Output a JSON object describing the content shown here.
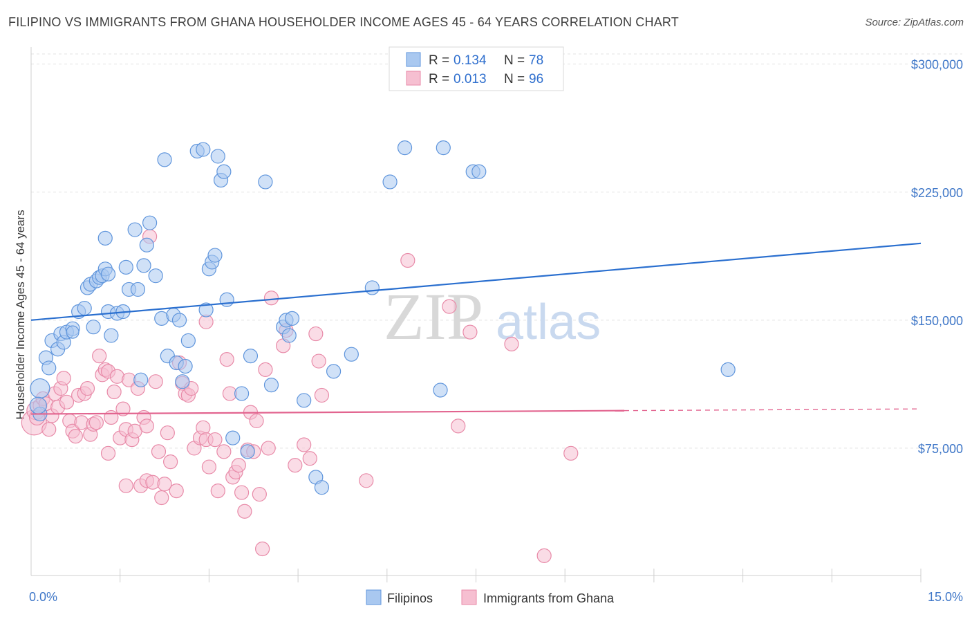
{
  "title": "FILIPINO VS IMMIGRANTS FROM GHANA HOUSEHOLDER INCOME AGES 45 - 64 YEARS CORRELATION CHART",
  "source": "Source: ZipAtlas.com",
  "watermark": {
    "zip": "ZIP",
    "atlas": "atlas"
  },
  "colors": {
    "blue_fill": "#a9c8f0",
    "blue_stroke": "#5f95dc",
    "blue_line": "#2a6fcf",
    "pink_fill": "#f6bfd1",
    "pink_stroke": "#e88aa8",
    "pink_line": "#e2648f",
    "grid": "#e3e3e3",
    "axis_text": "#3f77c8"
  },
  "chart_data": {
    "type": "scatter",
    "xlabel": "",
    "ylabel": "Householder Income Ages 45 - 64 years",
    "xlim": [
      0.0,
      15.0
    ],
    "ylim": [
      0,
      310000
    ],
    "x_tick_labels": {
      "left": "0.0%",
      "right": "15.0%"
    },
    "y_ticks": [
      {
        "value": 75000,
        "label": "$75,000"
      },
      {
        "value": 150000,
        "label": "$150,000"
      },
      {
        "value": 225000,
        "label": "$225,000"
      },
      {
        "value": 300000,
        "label": "$300,000"
      }
    ],
    "legend": [
      {
        "name": "Filipinos",
        "r_label": "R =",
        "r_value": "0.134",
        "n_label": "N =",
        "n_value": "78"
      },
      {
        "name": "Immigrants from Ghana",
        "r_label": "R =",
        "r_value": "0.013",
        "n_label": "N =",
        "n_value": "96"
      }
    ],
    "series": [
      {
        "name": "Filipinos",
        "trend": {
          "x": [
            0.0,
            15.0
          ],
          "y": [
            150000,
            195000
          ],
          "dashed_from": null
        },
        "points": [
          [
            0.15,
            110000,
            14
          ],
          [
            0.15,
            95000,
            10
          ],
          [
            0.12,
            100000,
            12
          ],
          [
            0.25,
            128000,
            10
          ],
          [
            0.3,
            122000,
            10
          ],
          [
            0.35,
            138000,
            10
          ],
          [
            0.45,
            133000,
            10
          ],
          [
            0.5,
            142000,
            10
          ],
          [
            0.55,
            137000,
            10
          ],
          [
            0.6,
            143000,
            10
          ],
          [
            0.7,
            145000,
            10
          ],
          [
            0.7,
            143000,
            9
          ],
          [
            0.8,
            155000,
            10
          ],
          [
            0.9,
            157000,
            10
          ],
          [
            0.95,
            169000,
            10
          ],
          [
            1.0,
            171000,
            10
          ],
          [
            1.05,
            146000,
            10
          ],
          [
            1.1,
            173000,
            10
          ],
          [
            1.15,
            175000,
            10
          ],
          [
            1.2,
            176000,
            10
          ],
          [
            1.25,
            180000,
            10
          ],
          [
            1.3,
            177000,
            10
          ],
          [
            1.25,
            198000,
            10
          ],
          [
            1.3,
            155000,
            10
          ],
          [
            1.45,
            154000,
            10
          ],
          [
            1.35,
            141000,
            10
          ],
          [
            1.55,
            155000,
            10
          ],
          [
            1.6,
            181000,
            10
          ],
          [
            1.65,
            168000,
            10
          ],
          [
            1.75,
            203000,
            10
          ],
          [
            1.8,
            168000,
            10
          ],
          [
            1.85,
            115000,
            10
          ],
          [
            1.9,
            182000,
            10
          ],
          [
            1.95,
            194000,
            10
          ],
          [
            2.0,
            207000,
            10
          ],
          [
            2.1,
            176000,
            10
          ],
          [
            2.2,
            151000,
            10
          ],
          [
            2.25,
            244000,
            10
          ],
          [
            2.3,
            129000,
            10
          ],
          [
            2.4,
            153000,
            10
          ],
          [
            2.45,
            125000,
            10
          ],
          [
            2.5,
            150000,
            10
          ],
          [
            2.55,
            114000,
            10
          ],
          [
            2.6,
            123000,
            10
          ],
          [
            2.65,
            138000,
            10
          ],
          [
            2.8,
            249000,
            10
          ],
          [
            2.9,
            250000,
            10
          ],
          [
            2.95,
            156000,
            10
          ],
          [
            3.0,
            180000,
            10
          ],
          [
            3.05,
            184000,
            10
          ],
          [
            3.1,
            188000,
            10
          ],
          [
            3.15,
            246000,
            10
          ],
          [
            3.2,
            232000,
            10
          ],
          [
            3.25,
            237000,
            10
          ],
          [
            3.3,
            162000,
            10
          ],
          [
            3.4,
            81000,
            10
          ],
          [
            3.55,
            107000,
            10
          ],
          [
            3.65,
            73000,
            10
          ],
          [
            3.7,
            129000,
            10
          ],
          [
            3.95,
            231000,
            10
          ],
          [
            4.05,
            112000,
            10
          ],
          [
            4.25,
            146000,
            10
          ],
          [
            4.3,
            150000,
            10
          ],
          [
            4.35,
            141000,
            10
          ],
          [
            4.4,
            151000,
            10
          ],
          [
            4.6,
            103000,
            10
          ],
          [
            4.8,
            58000,
            10
          ],
          [
            4.9,
            52000,
            10
          ],
          [
            5.1,
            120000,
            10
          ],
          [
            5.4,
            130000,
            10
          ],
          [
            5.75,
            169000,
            10
          ],
          [
            6.05,
            231000,
            10
          ],
          [
            6.3,
            251000,
            10
          ],
          [
            6.9,
            109000,
            10
          ],
          [
            6.95,
            251000,
            10
          ],
          [
            7.45,
            237000,
            10
          ],
          [
            7.55,
            237000,
            10
          ],
          [
            11.75,
            121000,
            10
          ]
        ]
      },
      {
        "name": "Immigrants from Ghana",
        "trend": {
          "x": [
            0.0,
            15.0
          ],
          "y": [
            95000,
            98000
          ],
          "dashed_from": 10.0
        },
        "points": [
          [
            0.05,
            90000,
            18
          ],
          [
            0.08,
            97000,
            13
          ],
          [
            0.1,
            93000,
            11
          ],
          [
            0.15,
            100000,
            10
          ],
          [
            0.2,
            104000,
            10
          ],
          [
            0.25,
            101000,
            10
          ],
          [
            0.3,
            86000,
            10
          ],
          [
            0.35,
            94000,
            10
          ],
          [
            0.4,
            107000,
            10
          ],
          [
            0.45,
            99000,
            10
          ],
          [
            0.5,
            110000,
            10
          ],
          [
            0.55,
            116000,
            10
          ],
          [
            0.6,
            102000,
            10
          ],
          [
            0.65,
            91000,
            10
          ],
          [
            0.7,
            85000,
            10
          ],
          [
            0.75,
            82000,
            10
          ],
          [
            0.8,
            106000,
            10
          ],
          [
            0.85,
            90000,
            10
          ],
          [
            0.9,
            107000,
            10
          ],
          [
            0.95,
            110000,
            10
          ],
          [
            1.0,
            83000,
            10
          ],
          [
            1.05,
            89000,
            10
          ],
          [
            1.1,
            90000,
            10
          ],
          [
            1.15,
            129000,
            10
          ],
          [
            1.2,
            118000,
            10
          ],
          [
            1.25,
            121000,
            10
          ],
          [
            1.3,
            120000,
            10
          ],
          [
            1.3,
            72000,
            10
          ],
          [
            1.35,
            93000,
            10
          ],
          [
            1.4,
            108000,
            10
          ],
          [
            1.45,
            117000,
            10
          ],
          [
            1.5,
            81000,
            10
          ],
          [
            1.55,
            98000,
            10
          ],
          [
            1.6,
            86000,
            10
          ],
          [
            1.6,
            53000,
            10
          ],
          [
            1.65,
            115000,
            10
          ],
          [
            1.7,
            80000,
            10
          ],
          [
            1.75,
            85000,
            10
          ],
          [
            1.8,
            110000,
            10
          ],
          [
            1.85,
            53000,
            10
          ],
          [
            1.9,
            93000,
            10
          ],
          [
            1.95,
            88000,
            10
          ],
          [
            1.95,
            56000,
            10
          ],
          [
            2.0,
            199000,
            10
          ],
          [
            2.05,
            55000,
            10
          ],
          [
            2.1,
            114000,
            10
          ],
          [
            2.15,
            73000,
            10
          ],
          [
            2.2,
            46000,
            10
          ],
          [
            2.25,
            54000,
            10
          ],
          [
            2.3,
            84000,
            10
          ],
          [
            2.35,
            67000,
            10
          ],
          [
            2.45,
            50000,
            10
          ],
          [
            2.5,
            125000,
            10
          ],
          [
            2.55,
            113000,
            10
          ],
          [
            2.6,
            107000,
            10
          ],
          [
            2.65,
            106000,
            10
          ],
          [
            2.7,
            110000,
            10
          ],
          [
            2.75,
            75000,
            10
          ],
          [
            2.85,
            81000,
            10
          ],
          [
            2.9,
            87000,
            10
          ],
          [
            2.95,
            149000,
            10
          ],
          [
            2.95,
            80000,
            10
          ],
          [
            3.0,
            64000,
            10
          ],
          [
            3.1,
            80000,
            10
          ],
          [
            3.15,
            50000,
            10
          ],
          [
            3.25,
            73000,
            10
          ],
          [
            3.3,
            127000,
            10
          ],
          [
            3.35,
            107000,
            10
          ],
          [
            3.4,
            58000,
            10
          ],
          [
            3.45,
            61000,
            10
          ],
          [
            3.5,
            65000,
            10
          ],
          [
            3.55,
            49000,
            10
          ],
          [
            3.6,
            38000,
            10
          ],
          [
            3.65,
            74000,
            10
          ],
          [
            3.7,
            96000,
            10
          ],
          [
            3.75,
            73000,
            10
          ],
          [
            3.8,
            91000,
            10
          ],
          [
            3.85,
            48000,
            10
          ],
          [
            3.9,
            16000,
            10
          ],
          [
            3.95,
            121000,
            10
          ],
          [
            4.0,
            75000,
            10
          ],
          [
            4.05,
            163000,
            10
          ],
          [
            4.25,
            135000,
            10
          ],
          [
            4.3,
            144000,
            10
          ],
          [
            4.45,
            65000,
            10
          ],
          [
            4.6,
            77000,
            10
          ],
          [
            4.7,
            69000,
            10
          ],
          [
            4.8,
            142000,
            10
          ],
          [
            4.85,
            126000,
            10
          ],
          [
            4.9,
            106000,
            10
          ],
          [
            5.65,
            56000,
            10
          ],
          [
            6.35,
            185000,
            10
          ],
          [
            7.05,
            158000,
            10
          ],
          [
            7.2,
            88000,
            10
          ],
          [
            7.4,
            143000,
            10
          ],
          [
            8.1,
            136000,
            10
          ],
          [
            8.65,
            12000,
            10
          ],
          [
            9.1,
            72000,
            10
          ]
        ]
      }
    ]
  }
}
